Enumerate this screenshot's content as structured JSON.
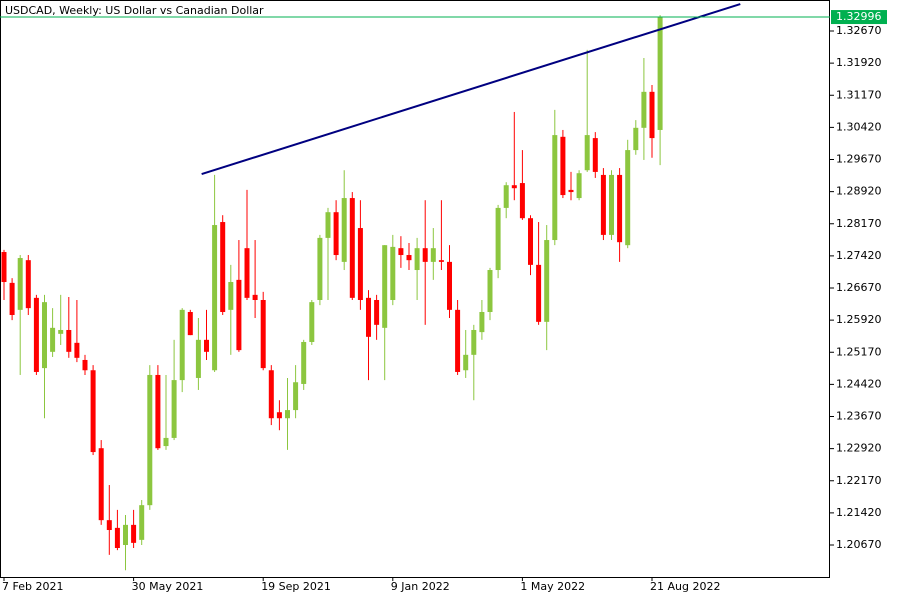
{
  "chart_data": {
    "type": "candlestick",
    "title": "USDCAD, Weekly:  US Dollar vs Canadian Dollar",
    "categories": [
      "7 Feb 2021",
      null,
      null,
      null,
      null,
      null,
      null,
      null,
      null,
      null,
      null,
      null,
      null,
      null,
      null,
      null,
      "30 May 2021",
      null,
      null,
      null,
      null,
      null,
      null,
      null,
      null,
      null,
      null,
      null,
      null,
      null,
      null,
      null,
      "19 Sep 2021",
      null,
      null,
      null,
      null,
      null,
      null,
      null,
      null,
      null,
      null,
      null,
      null,
      null,
      null,
      null,
      "9 Jan 2022",
      null,
      null,
      null,
      null,
      null,
      null,
      null,
      null,
      null,
      null,
      null,
      null,
      null,
      null,
      null,
      "1 May 2022",
      null,
      null,
      null,
      null,
      null,
      null,
      null,
      null,
      null,
      null,
      null,
      null,
      null,
      null,
      null,
      "21 Aug 2022",
      null
    ],
    "open": [
      1.2751,
      1.2679,
      1.2616,
      1.2732,
      1.2644,
      1.248,
      1.2518,
      1.256,
      1.2569,
      1.2539,
      1.2499,
      1.2475,
      1.2293,
      1.2125,
      1.2107,
      1.2067,
      1.2114,
      1.2079,
      1.216,
      1.2464,
      1.2298,
      1.2317,
      1.2452,
      1.2611,
      1.2457,
      1.2546,
      1.2475,
      1.2821,
      1.2616,
      1.2686,
      1.276,
      1.2651,
      1.2639,
      1.2475,
      1.2377,
      1.2363,
      1.2382,
      1.2443,
      1.2541,
      1.2639,
      1.2784,
      1.2844,
      1.2728,
      1.2877,
      1.2807,
      1.2644,
      1.2639,
      1.2574,
      1.2639,
      1.276,
      1.2744,
      1.2709,
      1.276,
      1.2728,
      1.2732,
      1.2728,
      1.2616,
      1.2475,
      1.2511,
      1.2564,
      1.2611,
      1.2709,
      1.2854,
      1.2907,
      1.2912,
      1.283,
      1.2721,
      1.2588,
      1.2779,
      1.302,
      1.2896,
      1.2877,
      1.2942,
      1.3017,
      1.2931,
      1.2791,
      1.2931,
      1.2767,
      1.2989,
      1.3041,
      1.3125,
      1.3036
    ],
    "high": [
      1.2756,
      1.269,
      1.2744,
      1.2744,
      1.2651,
      1.2651,
      1.262,
      1.2651,
      1.2646,
      1.2639,
      1.2511,
      1.2487,
      1.2312,
      1.2207,
      1.2149,
      1.2137,
      1.2149,
      1.2172,
      1.2487,
      1.2487,
      1.2464,
      1.2546,
      1.262,
      1.2616,
      1.2597,
      1.2616,
      1.2931,
      1.2837,
      1.2721,
      1.2779,
      1.2896,
      1.2779,
      1.2658,
      1.2487,
      1.2405,
      1.2457,
      1.2487,
      1.2546,
      1.2639,
      1.2791,
      1.2854,
      1.2872,
      1.2942,
      1.2891,
      1.2872,
      1.2662,
      1.2651,
      1.2767,
      1.2791,
      1.2788,
      1.2772,
      1.2784,
      1.2872,
      1.2807,
      1.2872,
      1.2767,
      1.2639,
      1.2569,
      1.2581,
      1.2639,
      1.2714,
      1.2861,
      1.2914,
      1.3078,
      1.2989,
      1.2837,
      1.2821,
      1.2814,
      1.3083,
      1.3036,
      1.2938,
      1.2942,
      1.3223,
      1.3031,
      1.2947,
      1.2942,
      1.2947,
      1.3013,
      1.3059,
      1.3204,
      1.3141,
      1.3304
    ],
    "low": [
      1.2639,
      1.2592,
      1.2464,
      1.2604,
      1.2464,
      1.2363,
      1.2506,
      1.2534,
      1.2504,
      1.2494,
      1.2464,
      1.2277,
      1.2114,
      1.2044,
      1.2055,
      1.2008,
      1.206,
      1.2067,
      1.2149,
      1.2289,
      1.2289,
      1.2312,
      1.2424,
      1.2557,
      1.2429,
      1.2499,
      1.2471,
      1.2604,
      1.2511,
      1.2518,
      1.2639,
      1.2597,
      1.2475,
      1.2347,
      1.2335,
      1.2289,
      1.2363,
      1.2429,
      1.2534,
      1.2627,
      1.2639,
      1.2732,
      1.2709,
      1.2639,
      1.2616,
      1.2452,
      1.2546,
      1.2452,
      1.2627,
      1.2714,
      1.2709,
      1.2639,
      1.2581,
      1.2686,
      1.2709,
      1.2597,
      1.2464,
      1.2457,
      1.2405,
      1.2546,
      1.2592,
      1.269,
      1.283,
      1.2872,
      1.2826,
      1.2697,
      1.2581,
      1.2522,
      1.2767,
      1.2877,
      1.2872,
      1.2872,
      1.2938,
      1.2924,
      1.2779,
      1.2779,
      1.2728,
      1.276,
      1.2978,
      1.2966,
      1.2971,
      1.2954
    ],
    "close": [
      1.2681,
      1.2604,
      1.2737,
      1.262,
      1.2471,
      1.2634,
      1.2574,
      1.2569,
      1.2518,
      1.2504,
      1.2475,
      1.2284,
      1.2125,
      1.2102,
      1.206,
      1.2114,
      1.2072,
      1.216,
      1.2464,
      1.2293,
      1.2317,
      1.2452,
      1.2616,
      1.2557,
      1.2546,
      1.2518,
      1.2814,
      1.2611,
      1.2681,
      1.2522,
      1.2644,
      1.2639,
      1.248,
      1.2363,
      1.2363,
      1.2382,
      1.2447,
      1.2541,
      1.2634,
      1.2784,
      1.2844,
      1.2744,
      1.2877,
      1.2644,
      1.2639,
      1.2553,
      1.2581,
      1.2767,
      1.2763,
      1.2744,
      1.2732,
      1.276,
      1.2728,
      1.276,
      1.2728,
      1.2616,
      1.2471,
      1.2511,
      1.2569,
      1.2611,
      1.2709,
      1.2854,
      1.2907,
      1.29,
      1.283,
      1.2721,
      1.2588,
      1.2779,
      1.3024,
      1.2884,
      1.2891,
      1.2935,
      1.3024,
      1.2938,
      1.2791,
      1.2931,
      1.2774,
      1.2989,
      1.3041,
      1.3125,
      1.3017,
      1.32996
    ],
    "up_color": "#8cc63f",
    "down_color": "#ff0000",
    "last_price_color": "#00b050",
    "ylim": [
      1.19923,
      1.33394
    ],
    "yticks": [
      {
        "value": 1.2067,
        "label": "1.20670"
      },
      {
        "value": 1.2142,
        "label": "1.21420"
      },
      {
        "value": 1.2217,
        "label": "1.22170"
      },
      {
        "value": 1.2292,
        "label": "1.22920"
      },
      {
        "value": 1.2367,
        "label": "1.23670"
      },
      {
        "value": 1.2442,
        "label": "1.24420"
      },
      {
        "value": 1.2517,
        "label": "1.25170"
      },
      {
        "value": 1.2592,
        "label": "1.25920"
      },
      {
        "value": 1.2667,
        "label": "1.26670"
      },
      {
        "value": 1.2742,
        "label": "1.27420"
      },
      {
        "value": 1.2817,
        "label": "1.28170"
      },
      {
        "value": 1.2892,
        "label": "1.28920"
      },
      {
        "value": 1.2967,
        "label": "1.29670"
      },
      {
        "value": 1.3042,
        "label": "1.30420"
      },
      {
        "value": 1.3117,
        "label": "1.31170"
      },
      {
        "value": 1.3192,
        "label": "1.31920"
      },
      {
        "value": 1.3267,
        "label": "1.32670"
      }
    ],
    "trendline": {
      "x": [
        24.4,
        90.9
      ],
      "y": [
        1.2933,
        1.333
      ],
      "color": "#000080"
    },
    "grid": false
  }
}
